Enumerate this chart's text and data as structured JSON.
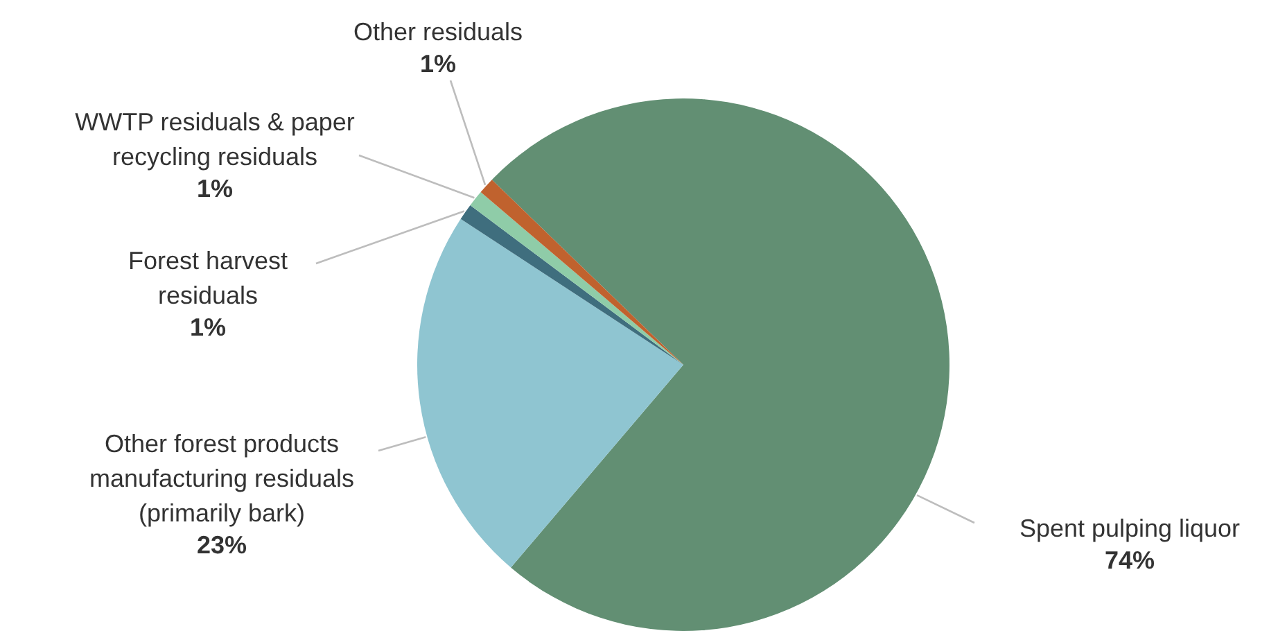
{
  "chart_data": {
    "type": "pie",
    "categories": [
      "Spent pulping liquor",
      "Other forest products manufacturing residuals (primarily bark)",
      "Forest harvest residuals",
      "WWTP residuals & paper recycling residuals",
      "Other residuals"
    ],
    "values": [
      74,
      23,
      1,
      1,
      1
    ],
    "value_labels": [
      "74%",
      "23%",
      "1%",
      "1%",
      "1%"
    ],
    "colors": [
      "#628f73",
      "#8fc5d1",
      "#3f6e7e",
      "#8fcca8",
      "#c0622e"
    ]
  }
}
